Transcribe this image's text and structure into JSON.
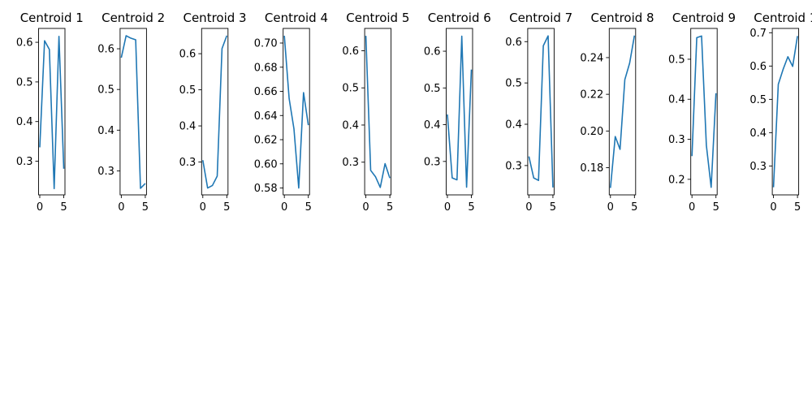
{
  "line_color": "#1f77b4",
  "chart_data": [
    {
      "type": "line",
      "title": "Centroid 1",
      "x": [
        0,
        1,
        2,
        3,
        4,
        5
      ],
      "y": [
        0.335,
        0.604,
        0.582,
        0.231,
        0.615,
        0.281
      ],
      "ylim": [
        0.215,
        0.635
      ],
      "yticks": [
        0.3,
        0.4,
        0.5,
        0.6
      ],
      "ytick_labels": [
        "0.3",
        "0.4",
        "0.5",
        "0.6"
      ],
      "xticks": [
        0,
        5
      ],
      "xtick_labels": [
        "0",
        "5"
      ]
    },
    {
      "type": "line",
      "title": "Centroid 2",
      "x": [
        0,
        1,
        2,
        3,
        4,
        5
      ],
      "y": [
        0.578,
        0.632,
        0.626,
        0.622,
        0.257,
        0.269
      ],
      "ylim": [
        0.241,
        0.65
      ],
      "yticks": [
        0.3,
        0.4,
        0.5,
        0.6
      ],
      "ytick_labels": [
        "0.3",
        "0.4",
        "0.5",
        "0.6"
      ],
      "xticks": [
        0,
        5
      ],
      "xtick_labels": [
        "0",
        "5"
      ]
    },
    {
      "type": "line",
      "title": "Centroid 3",
      "x": [
        0,
        1,
        2,
        3,
        4,
        5
      ],
      "y": [
        0.305,
        0.228,
        0.235,
        0.261,
        0.614,
        0.65
      ],
      "ylim": [
        0.209,
        0.67
      ],
      "yticks": [
        0.3,
        0.4,
        0.5,
        0.6
      ],
      "ytick_labels": [
        "0.3",
        "0.4",
        "0.5",
        "0.6"
      ],
      "xticks": [
        0,
        5
      ],
      "xtick_labels": [
        "0",
        "5"
      ]
    },
    {
      "type": "line",
      "title": "Centroid 4",
      "x": [
        0,
        1,
        2,
        3,
        4,
        5
      ],
      "y": [
        0.706,
        0.654,
        0.629,
        0.58,
        0.659,
        0.632
      ],
      "ylim": [
        0.5743,
        0.7121
      ],
      "yticks": [
        0.58,
        0.6,
        0.62,
        0.64,
        0.66,
        0.68,
        0.7
      ],
      "ytick_labels": [
        "0.58",
        "0.60",
        "0.62",
        "0.64",
        "0.66",
        "0.68",
        "0.70"
      ],
      "xticks": [
        0,
        5
      ],
      "xtick_labels": [
        "0",
        "5"
      ]
    },
    {
      "type": "line",
      "title": "Centroid 5",
      "x": [
        0,
        1,
        2,
        3,
        4,
        5
      ],
      "y": [
        0.64,
        0.278,
        0.261,
        0.232,
        0.296,
        0.257
      ],
      "ylim": [
        0.212,
        0.66
      ],
      "yticks": [
        0.3,
        0.4,
        0.5,
        0.6
      ],
      "ytick_labels": [
        "0.3",
        "0.4",
        "0.5",
        "0.6"
      ],
      "xticks": [
        0,
        5
      ],
      "xtick_labels": [
        "0",
        "5"
      ]
    },
    {
      "type": "line",
      "title": "Centroid 6",
      "x": [
        0,
        1,
        2,
        3,
        4,
        5
      ],
      "y": [
        0.428,
        0.255,
        0.25,
        0.641,
        0.23,
        0.55
      ],
      "ylim": [
        0.209,
        0.662
      ],
      "yticks": [
        0.3,
        0.4,
        0.5,
        0.6
      ],
      "ytick_labels": [
        "0.3",
        "0.4",
        "0.5",
        "0.6"
      ],
      "xticks": [
        0,
        5
      ],
      "xtick_labels": [
        "0",
        "5"
      ]
    },
    {
      "type": "line",
      "title": "Centroid 7",
      "x": [
        0,
        1,
        2,
        3,
        4,
        5
      ],
      "y": [
        0.322,
        0.27,
        0.264,
        0.59,
        0.614,
        0.247
      ],
      "ylim": [
        0.229,
        0.632
      ],
      "yticks": [
        0.3,
        0.4,
        0.5,
        0.6
      ],
      "ytick_labels": [
        "0.3",
        "0.4",
        "0.5",
        "0.6"
      ],
      "xticks": [
        0,
        5
      ],
      "xtick_labels": [
        "0",
        "5"
      ]
    },
    {
      "type": "line",
      "title": "Centroid 8",
      "x": [
        0,
        1,
        2,
        3,
        4,
        5
      ],
      "y": [
        0.169,
        0.197,
        0.19,
        0.228,
        0.237,
        0.252
      ],
      "ylim": [
        0.1652,
        0.2559
      ],
      "yticks": [
        0.18,
        0.2,
        0.22,
        0.24
      ],
      "ytick_labels": [
        "0.18",
        "0.20",
        "0.22",
        "0.24"
      ],
      "xticks": [
        0,
        5
      ],
      "xtick_labels": [
        "0",
        "5"
      ]
    },
    {
      "type": "line",
      "title": "Centroid 9",
      "x": [
        0,
        1,
        2,
        3,
        4,
        5
      ],
      "y": [
        0.258,
        0.554,
        0.558,
        0.285,
        0.18,
        0.415
      ],
      "ylim": [
        0.1611,
        0.577
      ],
      "yticks": [
        0.2,
        0.3,
        0.4,
        0.5
      ],
      "ytick_labels": [
        "0.2",
        "0.3",
        "0.4",
        "0.5"
      ],
      "xticks": [
        0,
        5
      ],
      "xtick_labels": [
        "0",
        "5"
      ]
    },
    {
      "type": "line",
      "title": "Centroid 1",
      "x": [
        0,
        1,
        2,
        3,
        4,
        5
      ],
      "y": [
        0.236,
        0.545,
        0.59,
        0.628,
        0.599,
        0.69
      ],
      "ylim": [
        0.2132,
        0.713
      ],
      "yticks": [
        0.3,
        0.4,
        0.5,
        0.6,
        0.7
      ],
      "ytick_labels": [
        "0.3",
        "0.4",
        "0.5",
        "0.6",
        "0.7"
      ],
      "xticks": [
        0,
        5
      ],
      "xtick_labels": [
        "0",
        "5"
      ]
    }
  ]
}
